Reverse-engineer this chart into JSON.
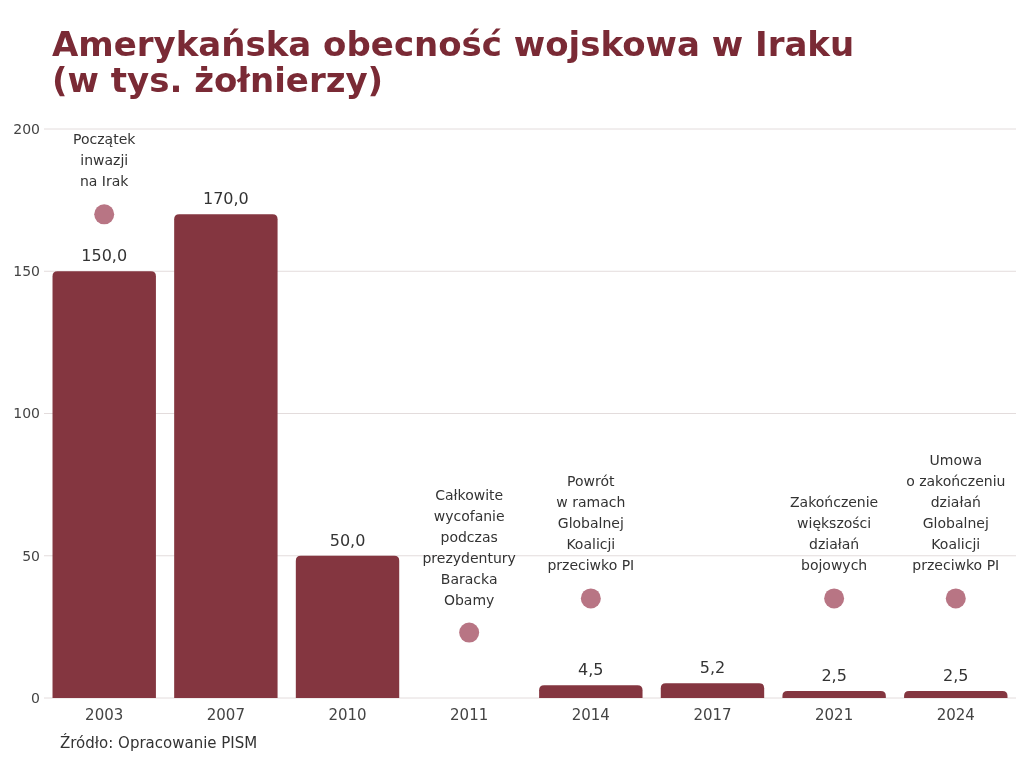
{
  "chart_data": {
    "type": "bar",
    "title": "Amerykańska obecność wojskowa w Iraku\n(w tys. żołnierzy)",
    "categories": [
      "2003",
      "2007",
      "2010",
      "2011",
      "2014",
      "2017",
      "2021",
      "2024"
    ],
    "values": [
      150,
      170,
      50,
      null,
      4.5,
      5.2,
      2.5,
      2.5
    ],
    "value_labels": [
      "150,0",
      "170,0",
      "50,0",
      null,
      "4,5",
      "5,2",
      "2,5",
      "2,5"
    ],
    "color": "#843640",
    "ylim": [
      0,
      200
    ],
    "yticks": [
      0,
      50,
      100,
      150,
      200
    ],
    "grid": "y",
    "annotations": [
      {
        "text": "Początek\ninwazji\nna Irak",
        "x": "2003",
        "y": 170
      },
      {
        "text": "Całkowite\nwycofanie\npodczas\nprezydentury\nBaracka\nObamy",
        "x": "2011",
        "y": 23
      },
      {
        "text": "Powrót\nw ramach\nGlobalnej\nKoalicji\nprzeciwko PI",
        "x": "2014",
        "y": 35
      },
      {
        "text": "Zakończenie\nwiększości\ndziałań\nbojowych",
        "x": "2021",
        "y": 35
      },
      {
        "text": "Umowa\no zakończeniu\ndziałań\nGlobalnej\nKoalicji\nprzeciwko PI",
        "x": "2024",
        "y": 35
      },
      "Źródło: Opracowanie PISM"
    ]
  }
}
